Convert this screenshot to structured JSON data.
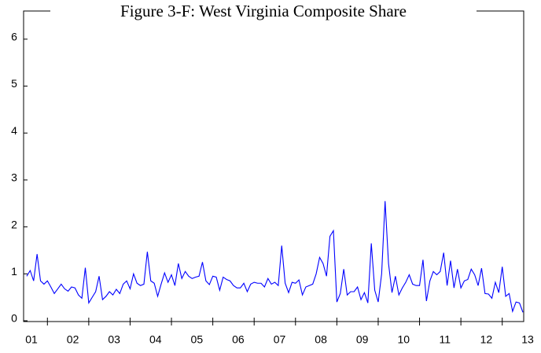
{
  "chart_data": {
    "type": "line",
    "title": "Figure 3-F: West Virginia Composite Share",
    "color": "#0000ff",
    "ylim": [
      0,
      6.6
    ],
    "yticks": [
      0,
      1,
      2,
      3,
      4,
      5,
      6
    ],
    "categories": [
      "01",
      null,
      null,
      null,
      null,
      null,
      null,
      null,
      null,
      null,
      null,
      null,
      "02",
      null,
      null,
      null,
      null,
      null,
      null,
      null,
      null,
      null,
      null,
      null,
      "03",
      null,
      null,
      null,
      null,
      null,
      null,
      null,
      null,
      null,
      null,
      null,
      "04",
      null,
      null,
      null,
      null,
      null,
      null,
      null,
      null,
      null,
      null,
      null,
      "05",
      null,
      null,
      null,
      null,
      null,
      null,
      null,
      null,
      null,
      null,
      null,
      "06",
      null,
      null,
      null,
      null,
      null,
      null,
      null,
      null,
      null,
      null,
      null,
      "07",
      null,
      null,
      null,
      null,
      null,
      null,
      null,
      null,
      null,
      null,
      null,
      "08",
      null,
      null,
      null,
      null,
      null,
      null,
      null,
      null,
      null,
      null,
      null,
      "09",
      null,
      null,
      null,
      null,
      null,
      null,
      null,
      null,
      null,
      null,
      null,
      "10",
      null,
      null,
      null,
      null,
      null,
      null,
      null,
      null,
      null,
      null,
      null,
      "11",
      null,
      null,
      null,
      null,
      null,
      null,
      null,
      null,
      null,
      null,
      null,
      "12",
      null,
      null,
      null,
      null,
      null,
      null,
      null,
      null,
      null,
      null,
      null,
      "13"
    ],
    "values": [
      0.95,
      1.07,
      0.85,
      1.42,
      0.85,
      0.78,
      0.85,
      0.72,
      0.58,
      0.68,
      0.78,
      0.68,
      0.63,
      0.72,
      0.7,
      0.55,
      0.48,
      1.13,
      0.38,
      0.5,
      0.62,
      0.95,
      0.45,
      0.52,
      0.62,
      0.55,
      0.67,
      0.58,
      0.78,
      0.85,
      0.68,
      1.0,
      0.8,
      0.75,
      0.78,
      1.47,
      0.85,
      0.8,
      0.52,
      0.78,
      1.02,
      0.82,
      0.98,
      0.75,
      1.22,
      0.9,
      1.05,
      0.95,
      0.9,
      0.93,
      0.95,
      1.25,
      0.85,
      0.77,
      0.95,
      0.93,
      0.65,
      0.93,
      0.88,
      0.85,
      0.75,
      0.7,
      0.7,
      0.8,
      0.62,
      0.78,
      0.82,
      0.8,
      0.8,
      0.72,
      0.9,
      0.78,
      0.82,
      0.75,
      1.6,
      0.8,
      0.6,
      0.82,
      0.8,
      0.87,
      0.55,
      0.72,
      0.75,
      0.78,
      1.0,
      1.35,
      1.22,
      0.95,
      1.8,
      1.92,
      0.4,
      0.58,
      1.1,
      0.55,
      0.62,
      0.62,
      0.72,
      0.45,
      0.6,
      0.38,
      1.65,
      0.65,
      0.4,
      1.0,
      2.55,
      1.22,
      0.6,
      0.95,
      0.55,
      0.7,
      0.82,
      0.98,
      0.78,
      0.75,
      0.75,
      1.3,
      0.42,
      0.85,
      1.05,
      0.98,
      1.05,
      1.45,
      0.75,
      1.28,
      0.7,
      1.1,
      0.7,
      0.85,
      0.88,
      1.1,
      0.98,
      0.75,
      1.12,
      0.58,
      0.57,
      0.48,
      0.82,
      0.6,
      1.15,
      0.52,
      0.58,
      0.2,
      0.4,
      0.38,
      0.18
    ]
  }
}
